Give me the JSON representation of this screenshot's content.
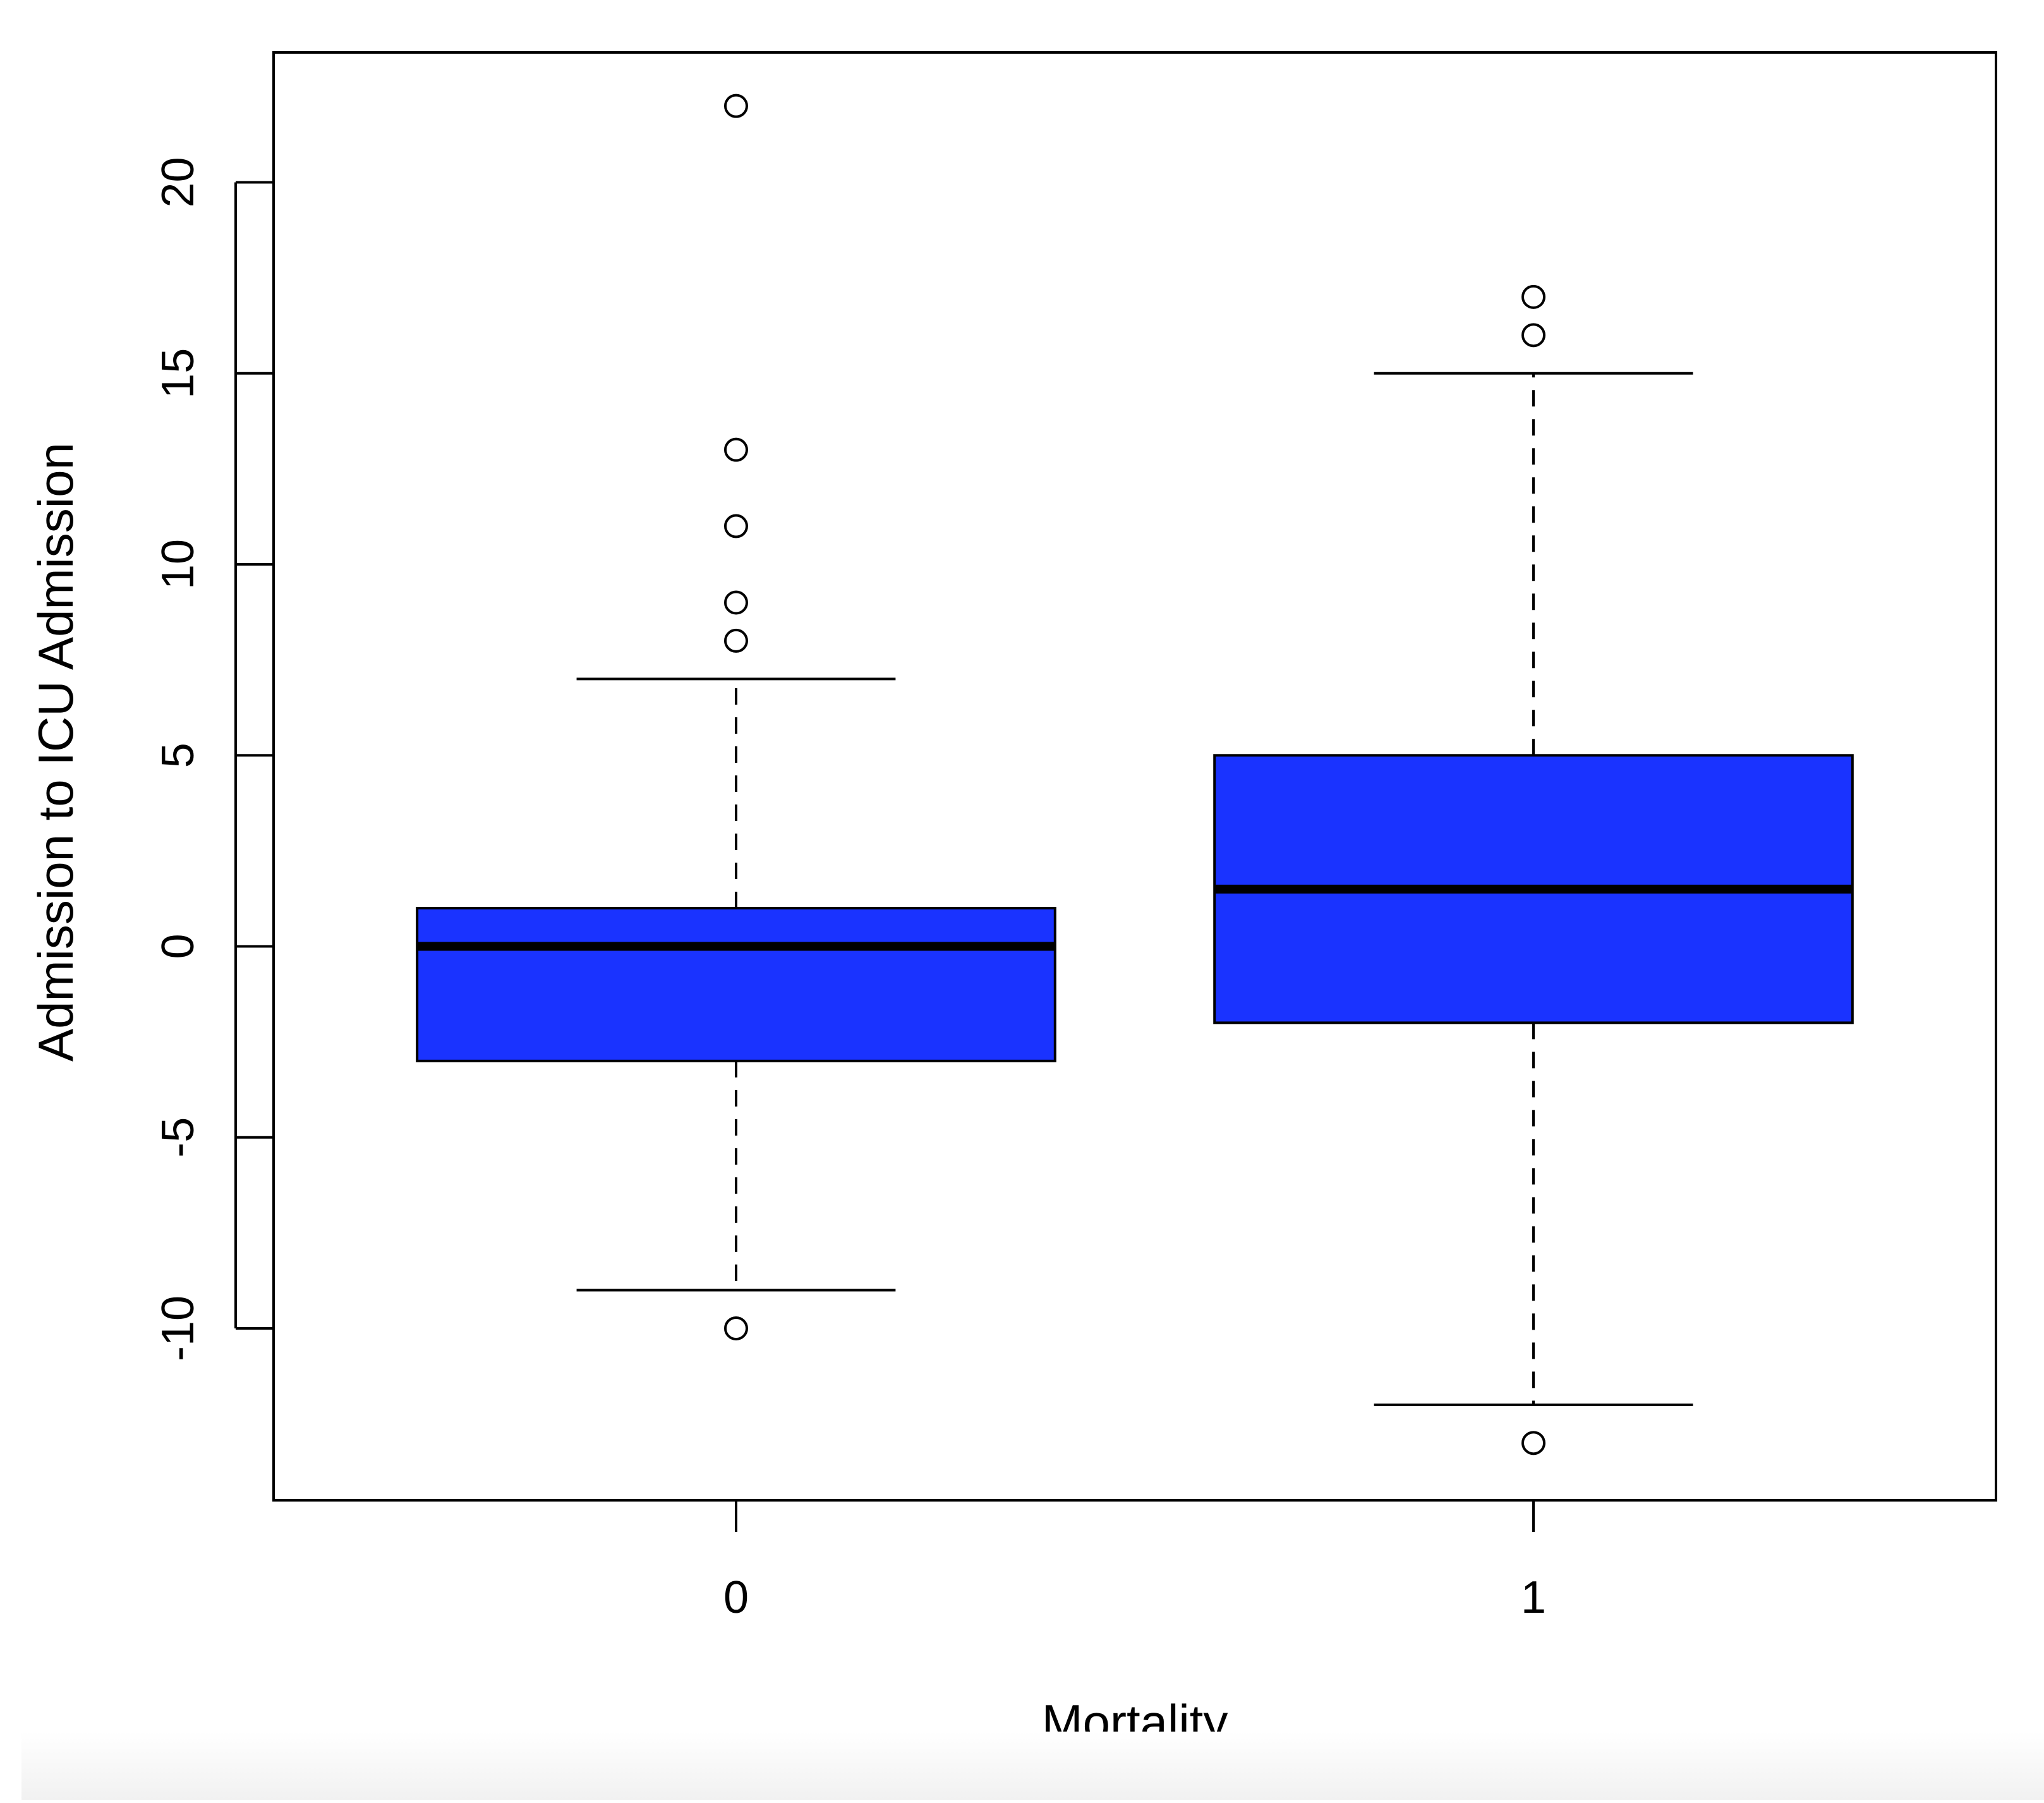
{
  "chart_data": {
    "type": "boxplot",
    "xlabel": "Mortality",
    "ylabel": "Admission to ICU Admission",
    "categories": [
      "0",
      "1"
    ],
    "ylim": [
      -14.5,
      23.4
    ],
    "yticks": [
      -10,
      -5,
      0,
      5,
      10,
      15,
      20
    ],
    "ytick_labels": [
      "-10",
      "-5",
      "0",
      "5",
      "10",
      "15",
      "20"
    ],
    "box_color": "#1a33ff",
    "grid": false,
    "series": [
      {
        "category": "0",
        "whisker_low": -9,
        "q1": -3,
        "median": 0,
        "q3": 1,
        "whisker_high": 7,
        "outliers": [
          22,
          13,
          11,
          9,
          8,
          -10
        ]
      },
      {
        "category": "1",
        "whisker_low": -12,
        "q1": -2,
        "median": 1.5,
        "q3": 5,
        "whisker_high": 15,
        "outliers": [
          17,
          16,
          -13
        ]
      }
    ]
  }
}
